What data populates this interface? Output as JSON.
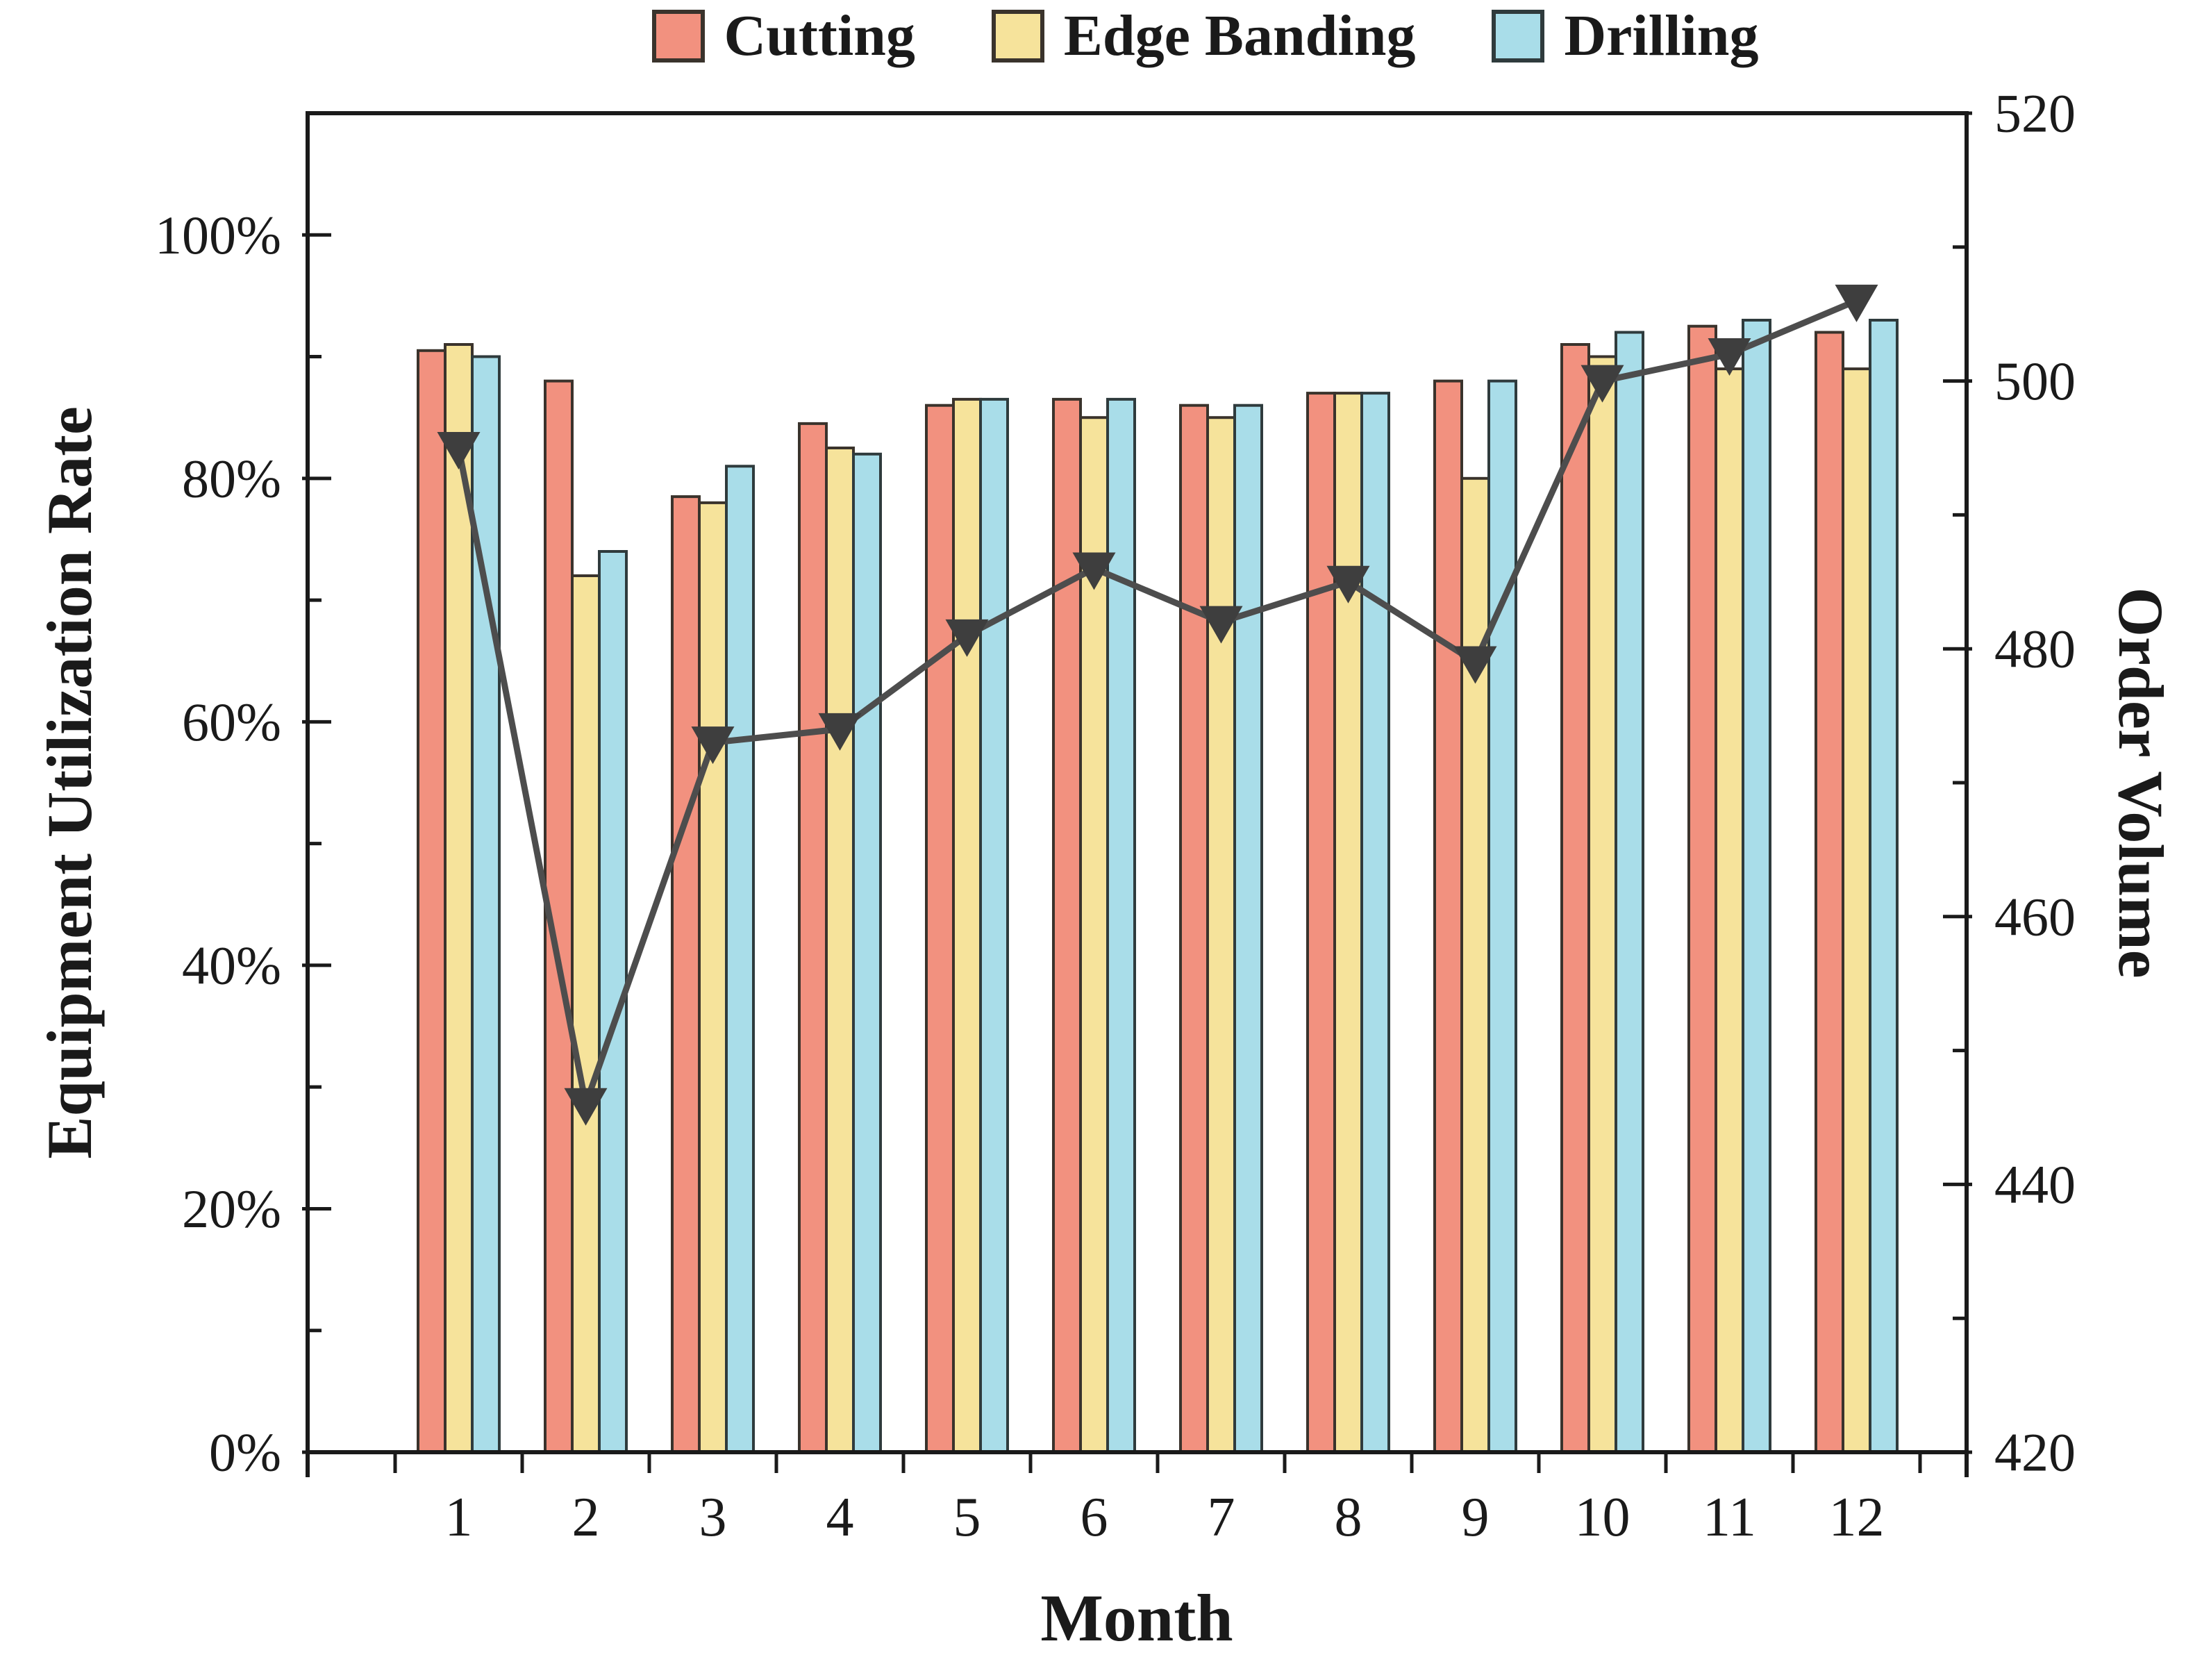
{
  "figure": {
    "legend_entries": [
      "Cutting",
      "Edge Banding",
      "Drilling"
    ]
  },
  "axes": {
    "left_tick_labels": [
      "0%",
      "20%",
      "40%",
      "60%",
      "80%",
      "100%"
    ],
    "right_tick_labels": [
      "420",
      "440",
      "460",
      "480",
      "500",
      "520"
    ],
    "x_tick_labels": [
      "1",
      "2",
      "3",
      "4",
      "5",
      "6",
      "7",
      "8",
      "9",
      "10",
      "11",
      "12"
    ]
  },
  "chart_data": {
    "type": "bar+line",
    "title": "",
    "xlabel": "Month",
    "ylabel_left": "Equipment Utilization Rate",
    "ylabel_right": "Order Volume",
    "categories": [
      1,
      2,
      3,
      4,
      5,
      6,
      7,
      8,
      9,
      10,
      11,
      12
    ],
    "ylim_left_percent": [
      0,
      110
    ],
    "left_axis_ticks_percent": [
      0,
      20,
      40,
      60,
      80,
      100
    ],
    "ylim_right": [
      420,
      520
    ],
    "right_axis_ticks": [
      420,
      440,
      460,
      480,
      500,
      520
    ],
    "grid": false,
    "legend_position": "top",
    "series": [
      {
        "name": "Cutting",
        "type": "bar",
        "axis": "left",
        "unit": "%",
        "color": "#F2917F",
        "border_color": "#3A332C",
        "values": [
          90.5,
          88,
          78.5,
          84.5,
          86,
          86.5,
          86,
          87,
          88,
          91,
          92.5,
          92
        ]
      },
      {
        "name": "Edge Banding",
        "type": "bar",
        "axis": "left",
        "unit": "%",
        "color": "#F6E39B",
        "border_color": "#3A332C",
        "values": [
          91,
          72,
          78,
          82.5,
          86.5,
          85,
          85,
          87,
          80,
          90,
          89,
          89
        ]
      },
      {
        "name": "Drilling",
        "type": "bar",
        "axis": "left",
        "unit": "%",
        "color": "#A9DDE9",
        "border_color": "#2F3B3D",
        "values": [
          90,
          74,
          81,
          82,
          86.5,
          86.5,
          86,
          87,
          88,
          92,
          93,
          93
        ]
      },
      {
        "name": "Order Volume",
        "type": "line",
        "axis": "right",
        "color": "#4D4D4D",
        "marker": "triangle-down",
        "marker_color": "#3E3E3E",
        "values": [
          495,
          446,
          473,
          474,
          481,
          486,
          482,
          485,
          479,
          500,
          502,
          506
        ]
      }
    ]
  }
}
